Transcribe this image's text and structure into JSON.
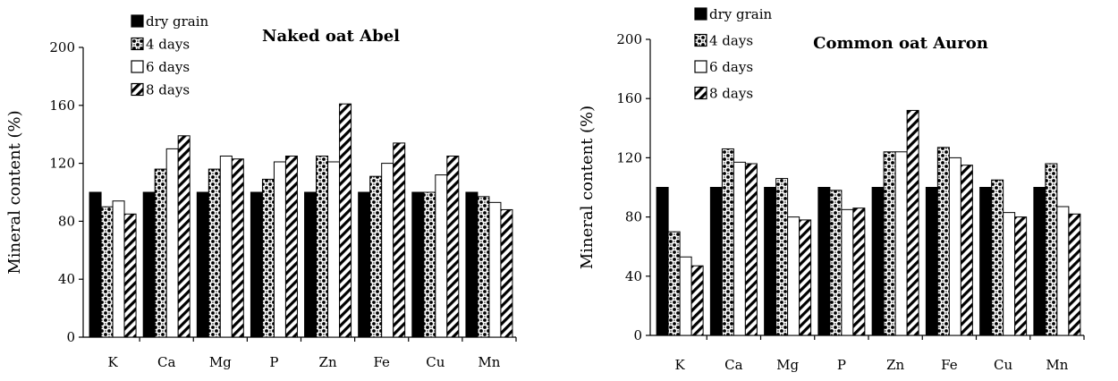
{
  "chart_data": [
    {
      "type": "bar",
      "title": "Naked oat Abel",
      "xlabel": "",
      "ylabel": "Mineral content (%)",
      "ylim": [
        0,
        200
      ],
      "yticks": [
        "0",
        "40",
        "80",
        "120",
        "160",
        "200"
      ],
      "categories": [
        "K",
        "Ca",
        "Mg",
        "P",
        "Zn",
        "Fe",
        "Cu",
        "Mn"
      ],
      "legend_position": "top-left",
      "series": [
        {
          "name": "dry grain",
          "pattern": "solid",
          "values": [
            100,
            100,
            100,
            100,
            100,
            100,
            100,
            100
          ]
        },
        {
          "name": "4 days",
          "pattern": "dots",
          "values": [
            90,
            116,
            116,
            109,
            125,
            111,
            100,
            97
          ]
        },
        {
          "name": "6 days",
          "pattern": "white",
          "values": [
            94,
            130,
            125,
            121,
            121,
            120,
            112,
            93
          ]
        },
        {
          "name": "8 days",
          "pattern": "hatch",
          "values": [
            85,
            139,
            123,
            125,
            161,
            134,
            125,
            88
          ]
        }
      ]
    },
    {
      "type": "bar",
      "title": "Common oat Auron",
      "xlabel": "",
      "ylabel": "Mineral content (%)",
      "ylim": [
        0,
        200
      ],
      "yticks": [
        "0",
        "40",
        "80",
        "120",
        "160",
        "200"
      ],
      "categories": [
        "K",
        "Ca",
        "Mg",
        "P",
        "Zn",
        "Fe",
        "Cu",
        "Mn"
      ],
      "legend_position": "top-left",
      "series": [
        {
          "name": "dry grain",
          "pattern": "solid",
          "values": [
            100,
            100,
            100,
            100,
            100,
            100,
            100,
            100
          ]
        },
        {
          "name": "4 days",
          "pattern": "dots",
          "values": [
            70,
            126,
            106,
            98,
            124,
            127,
            105,
            116
          ]
        },
        {
          "name": "6 days",
          "pattern": "white",
          "values": [
            53,
            117,
            80,
            85,
            124,
            120,
            83,
            87
          ]
        },
        {
          "name": "8 days",
          "pattern": "hatch",
          "values": [
            47,
            116,
            78,
            86,
            152,
            115,
            80,
            82
          ]
        }
      ]
    }
  ]
}
